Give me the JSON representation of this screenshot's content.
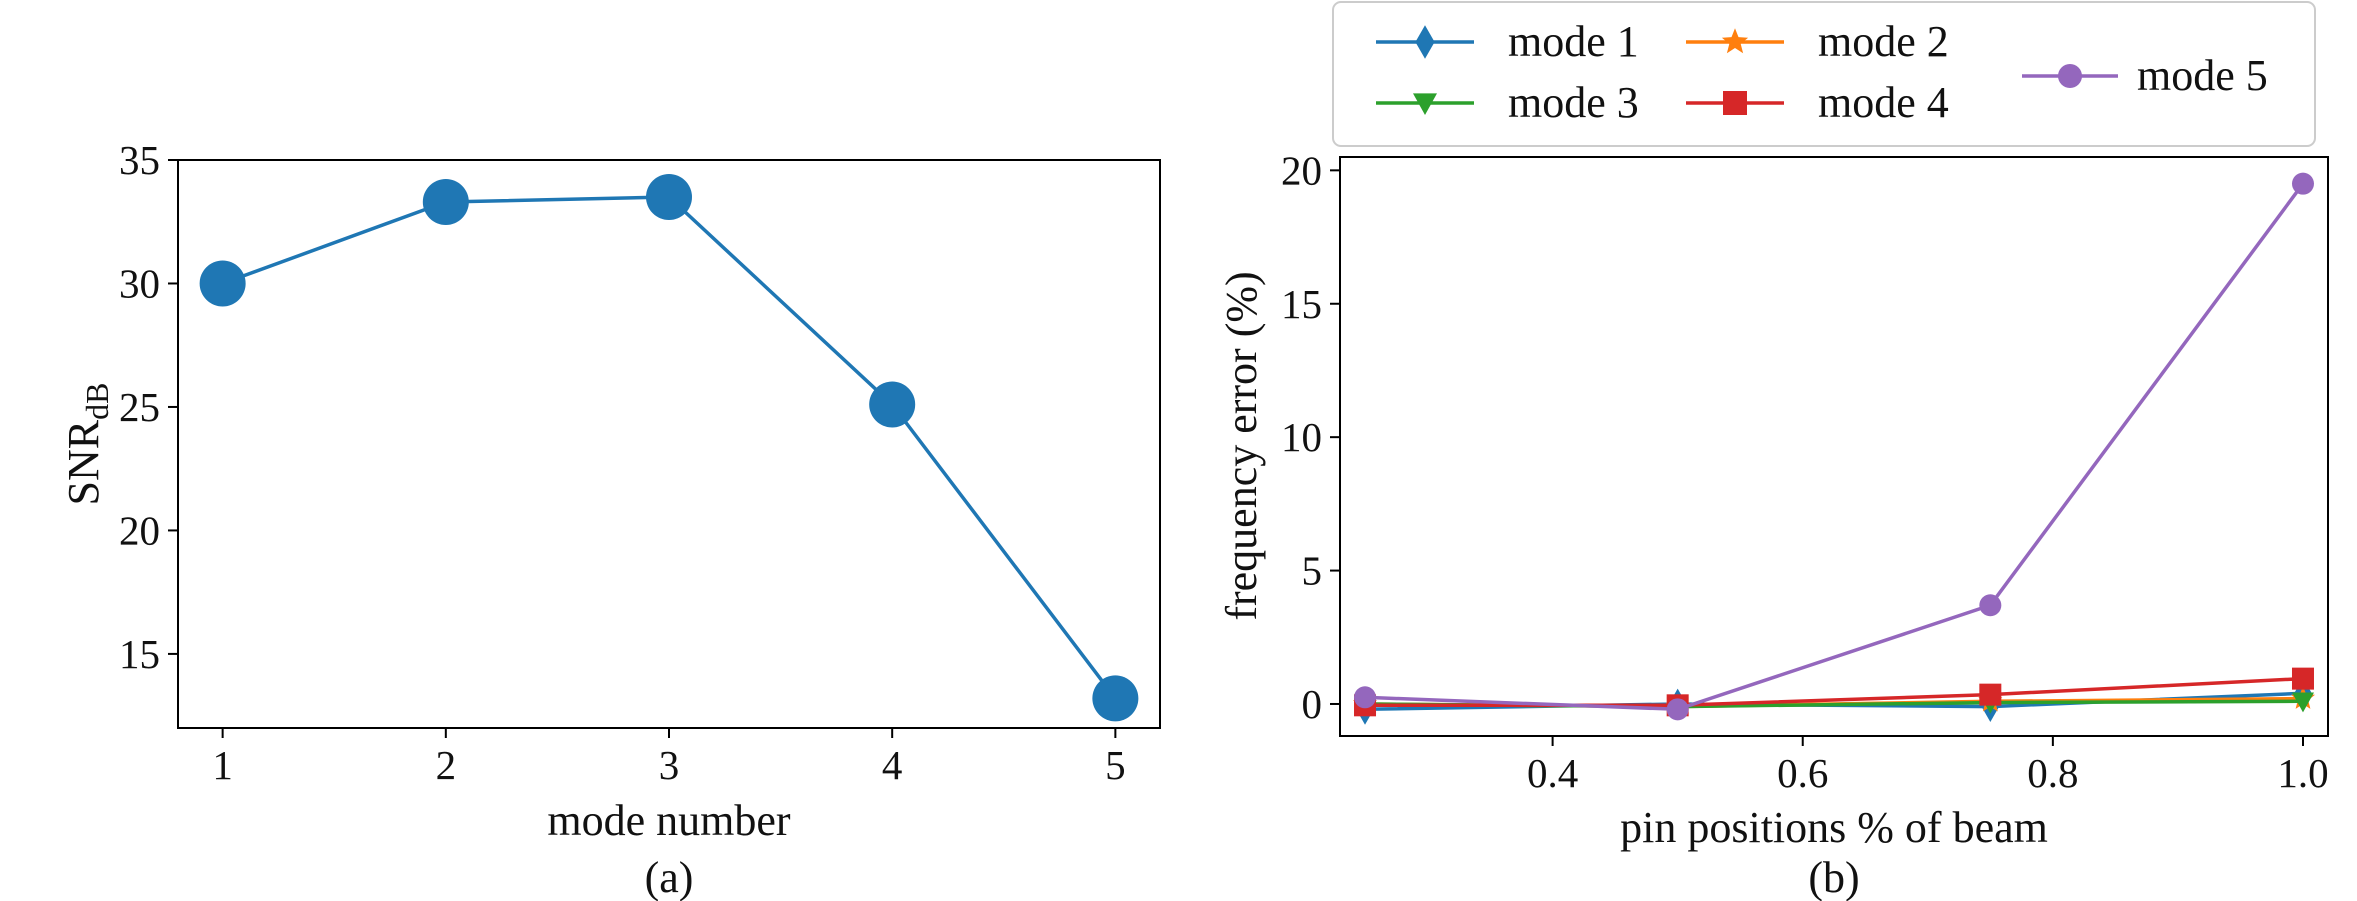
{
  "chart_data": [
    {
      "type": "line",
      "caption": "(a)",
      "xlabel": "mode number",
      "ylabel_main": "SNR",
      "ylabel_sub": "dB",
      "xlim": [
        0.8,
        5.2
      ],
      "ylim": [
        12,
        35
      ],
      "xticks": [
        1,
        2,
        3,
        4,
        5
      ],
      "yticks": [
        15,
        20,
        25,
        30,
        35
      ],
      "grid": false,
      "color": "#1f77b4",
      "x": [
        1,
        2,
        3,
        4,
        5
      ],
      "values": [
        30.0,
        33.3,
        33.5,
        25.1,
        13.2
      ]
    },
    {
      "type": "line",
      "caption": "(b)",
      "xlabel": "pin positions % of beam",
      "ylabel": "frequency error (%)",
      "xlim": [
        0.23,
        1.02
      ],
      "ylim": [
        -1.2,
        20.5
      ],
      "xticks": [
        0.4,
        0.6,
        0.8,
        1.0
      ],
      "xtick_labels": [
        "0.4",
        "0.6",
        "0.8",
        "1.0"
      ],
      "yticks": [
        0,
        5,
        10,
        15,
        20
      ],
      "grid": false,
      "legend_placement": "above plot",
      "x": [
        0.25,
        0.5,
        0.75,
        1.0
      ],
      "series": [
        {
          "name": "mode 1",
          "marker": "diamond",
          "color": "#1f77b4",
          "values": [
            -0.2,
            0.0,
            -0.1,
            0.4
          ]
        },
        {
          "name": "mode 2",
          "marker": "star",
          "color": "#ff7f0e",
          "values": [
            0.0,
            -0.1,
            0.1,
            0.2
          ]
        },
        {
          "name": "mode 3",
          "marker": "triangle-down",
          "color": "#2ca02c",
          "values": [
            0.0,
            -0.1,
            0.05,
            0.1
          ]
        },
        {
          "name": "mode 4",
          "marker": "square",
          "color": "#d62728",
          "values": [
            -0.05,
            -0.05,
            0.35,
            0.95
          ]
        },
        {
          "name": "mode 5",
          "marker": "circle",
          "color": "#9467bd",
          "values": [
            0.25,
            -0.2,
            3.7,
            19.5
          ]
        }
      ]
    }
  ]
}
